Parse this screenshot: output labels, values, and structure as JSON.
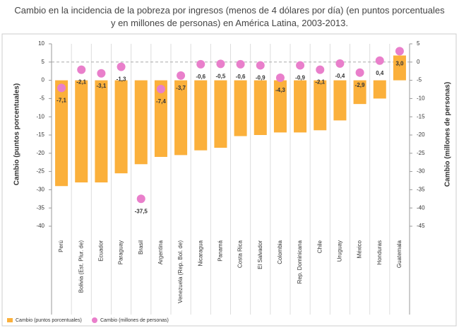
{
  "chart_data": {
    "type": "bar",
    "title": "Cambio en la incidencia de la pobreza por ingresos (menos de 4 dólares por día) (en puntos porcentuales y en millones de personas) en América Latina, 2003-2013.",
    "ylabel": "Cambio (puntos porcentuales)",
    "y2label": "Cambio (millones de personas)",
    "categories": [
      "Perú",
      "Bolivia (Est. Plur. de)",
      "Ecuador",
      "Paraguay",
      "Brasil",
      "Argentina",
      "Venezuela (Rep. Bol. de)",
      "Nicaragua",
      "Panamá",
      "Costa Rica",
      "El Salvador",
      "Colombia",
      "Rep. Dominicana",
      "Chile",
      "Uruguay",
      "México",
      "Honduras",
      "Guatemala"
    ],
    "series": [
      {
        "name": "Cambio (puntos porcentuales)",
        "type": "bar",
        "color": "#fbb03b",
        "values": [
          -29,
          -28,
          -28,
          -25.5,
          -23,
          -21,
          -20.5,
          -19.2,
          -18.5,
          -15.3,
          -15,
          -14.3,
          -14.3,
          -13.7,
          -11,
          -6.5,
          -5,
          6.8
        ]
      },
      {
        "name": "Cambio (millones de personas)",
        "type": "scatter",
        "axis": "y2",
        "color": "#e97fcb",
        "values": [
          -7.1,
          -2.1,
          -3.1,
          -1.3,
          -37.5,
          -7.4,
          -3.7,
          -0.6,
          -0.5,
          -0.6,
          -0.9,
          -4.3,
          -0.9,
          -2.1,
          -0.4,
          -2.9,
          0.4,
          3.0
        ],
        "value_labels": [
          "-7,1",
          "-2,1",
          "-3,1",
          "-1,3",
          "-37,5",
          "-7,4",
          "-3,7",
          "-0,6",
          "-0,5",
          "-0,6",
          "-0,9",
          "-4,3",
          "-0,9",
          "-2,1",
          "-0,4",
          "-2,9",
          "0,4",
          "3,0"
        ]
      }
    ],
    "ylim": [
      -40,
      10
    ],
    "yticks": [
      10,
      5,
      0,
      -5,
      -10,
      -15,
      -20,
      -25,
      -30,
      -35,
      -40
    ],
    "y2lim": [
      -45,
      5
    ],
    "y2ticks": [
      5,
      0,
      -5,
      -10,
      -15,
      -20,
      -25,
      -30,
      -35,
      -40,
      -45
    ],
    "legend": "bottom"
  }
}
